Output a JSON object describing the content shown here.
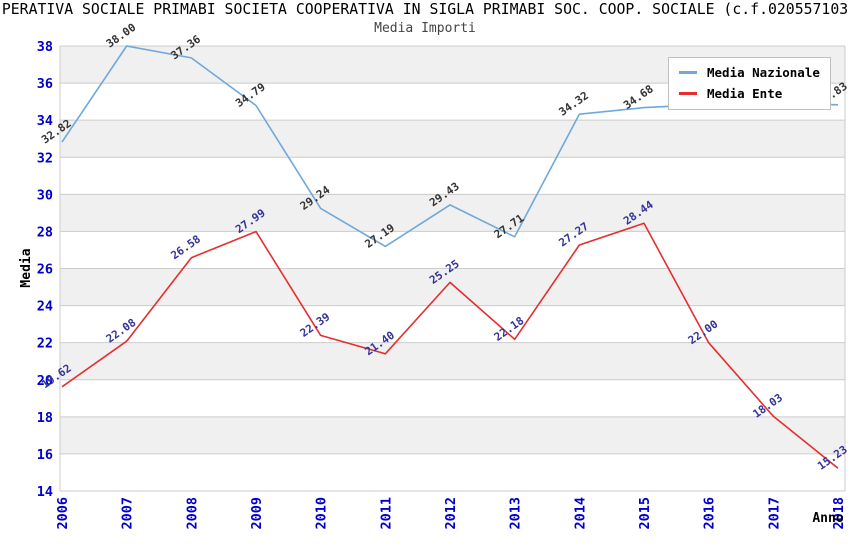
{
  "header": {
    "title": "PERATIVA SOCIALE PRIMABI SOCIETA COOPERATIVA IN SIGLA PRIMABI SOC. COOP. SOCIALE (c.f.020557103",
    "subtitle": "Media Importi"
  },
  "legend": {
    "position": "top-right-inside",
    "items": [
      {
        "label": "Media Nazionale",
        "color": "#6FA8DC"
      },
      {
        "label": "Media Ente",
        "color": "#E62E2E"
      }
    ]
  },
  "chart_data": {
    "type": "line",
    "title": "Media Importi",
    "xlabel": "Anno",
    "ylabel": "Media",
    "categories": [
      "2006",
      "2007",
      "2008",
      "2009",
      "2010",
      "2011",
      "2012",
      "2013",
      "2014",
      "2015",
      "2016",
      "2017",
      "2018"
    ],
    "series": [
      {
        "name": "Media Nazionale",
        "color": "#6FA8DC",
        "label_color": "#333333",
        "values": [
          32.82,
          38.0,
          37.36,
          34.79,
          29.24,
          27.19,
          29.43,
          27.71,
          34.32,
          34.68,
          34.85,
          34.95,
          34.83
        ],
        "labels": [
          "32.82",
          "38.00",
          "37.36",
          "34.79",
          "29.24",
          "27.19",
          "29.43",
          "27.71",
          "34.32",
          "34.68",
          "",
          "",
          "34.83"
        ]
      },
      {
        "name": "Media Ente",
        "color": "#E62E2E",
        "label_color": "#333399",
        "values": [
          19.62,
          22.08,
          26.58,
          27.99,
          22.39,
          21.4,
          25.25,
          22.18,
          27.27,
          28.44,
          22.0,
          18.03,
          15.23
        ],
        "labels": [
          "19.62",
          "22.08",
          "26.58",
          "27.99",
          "22.39",
          "21.40",
          "25.25",
          "22.18",
          "27.27",
          "28.44",
          "22.00",
          "18.03",
          "15.23"
        ]
      }
    ],
    "ylim": [
      14,
      38
    ],
    "ytick_step": 2,
    "grid": true,
    "band_color": "#F0F0F0",
    "grid_color": "#CCCCCC",
    "tick_label_color": "#0000CC",
    "axis_title_color": "#000000"
  }
}
